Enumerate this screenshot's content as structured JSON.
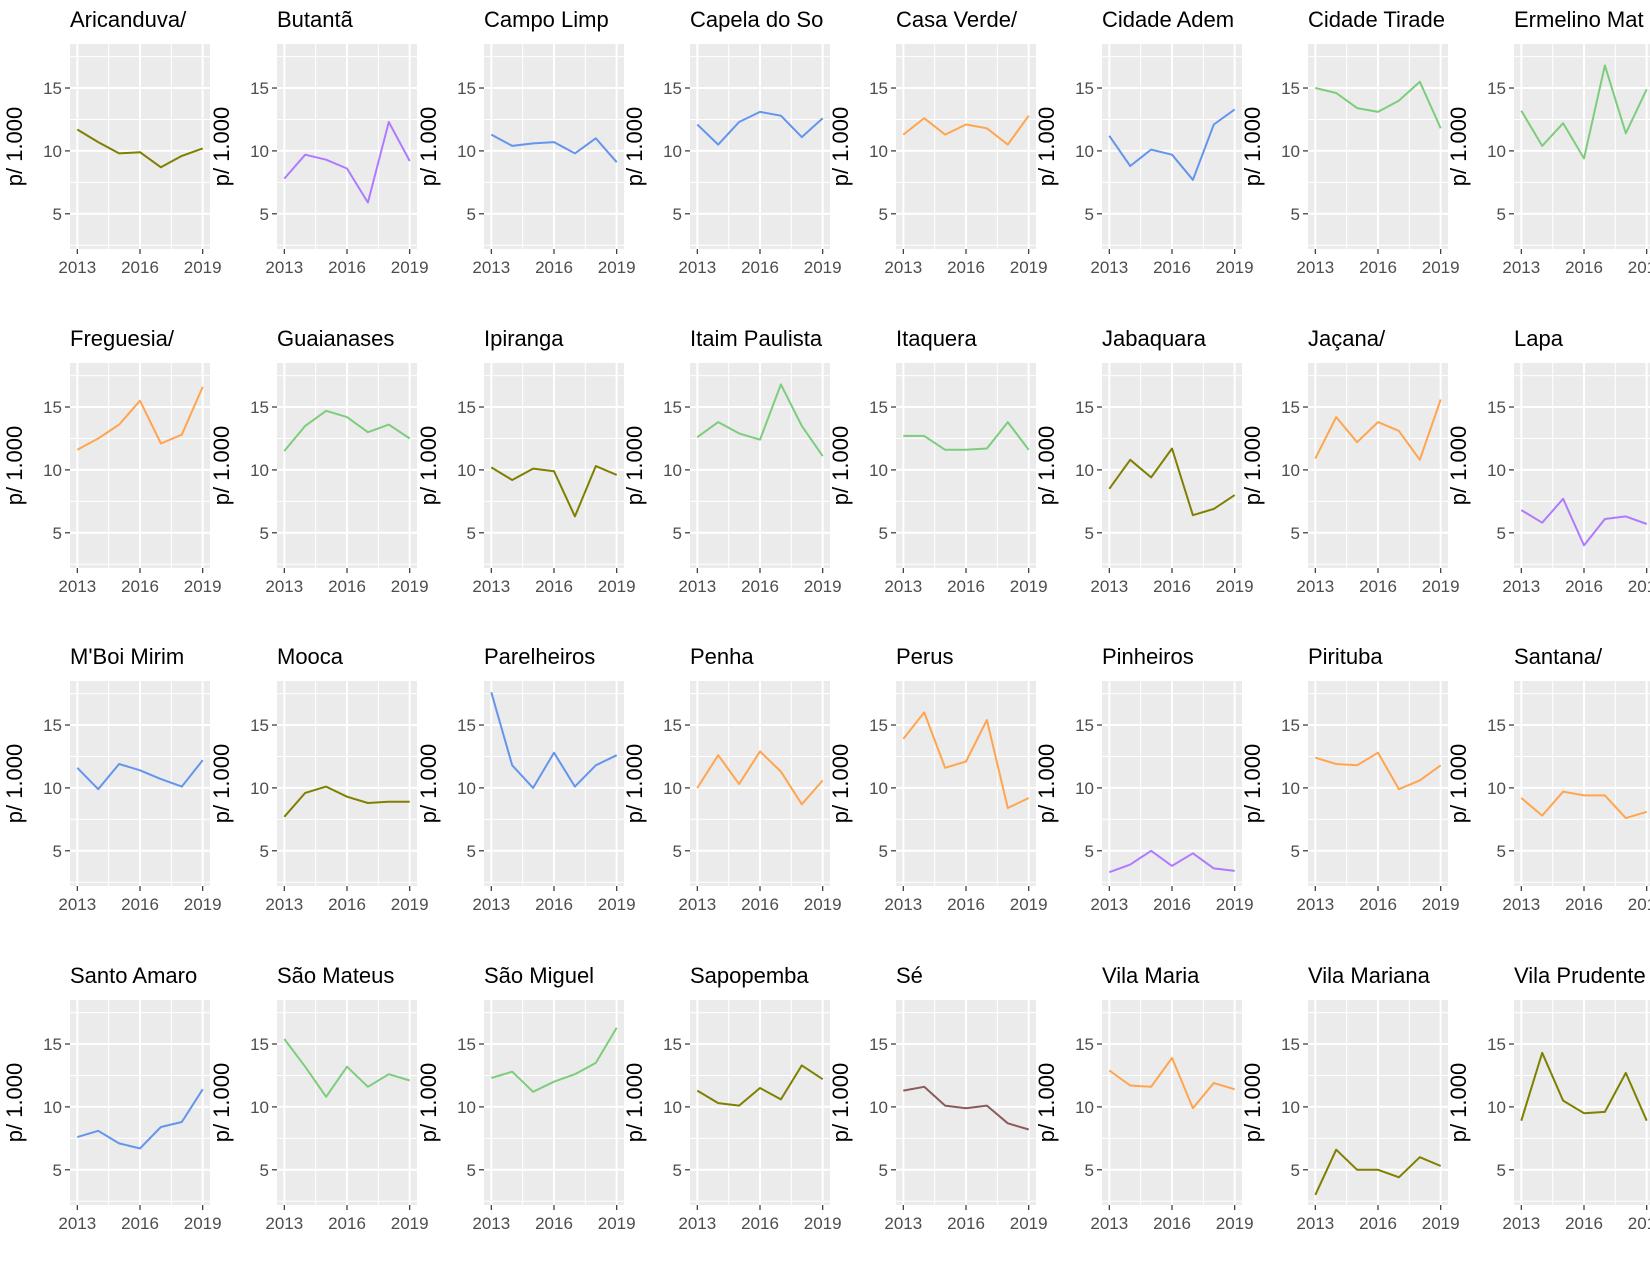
{
  "chart_data": {
    "type": "line",
    "facet_layout": "4x8 grid",
    "ylabel": "p/ 1.000",
    "ylim": [
      2.2,
      18.5
    ],
    "xlim": [
      2012.65,
      2019.35
    ],
    "x_ticks": [
      2013,
      2016,
      2019
    ],
    "y_ticks": [
      5,
      10,
      15
    ],
    "grid": true,
    "years": [
      2013,
      2014,
      2015,
      2016,
      2017,
      2018,
      2019
    ],
    "panels": [
      {
        "title": "Aricanduva/",
        "color": "#7f7f00",
        "values": [
          11.7,
          10.7,
          9.8,
          9.9,
          8.7,
          9.6,
          10.2
        ]
      },
      {
        "title": "Butantã",
        "color": "#b07aff",
        "values": [
          7.8,
          9.7,
          9.3,
          8.6,
          5.9,
          12.3,
          9.2
        ]
      },
      {
        "title": "Campo Limp",
        "color": "#6495ed",
        "values": [
          11.3,
          10.4,
          10.6,
          10.7,
          9.8,
          11.0,
          9.1
        ]
      },
      {
        "title": "Capela do So",
        "color": "#6495ed",
        "values": [
          12.1,
          10.5,
          12.3,
          13.1,
          12.8,
          11.1,
          12.6
        ]
      },
      {
        "title": "Casa Verde/",
        "color": "#ffa54f",
        "values": [
          11.3,
          12.6,
          11.3,
          12.1,
          11.8,
          10.5,
          12.8
        ]
      },
      {
        "title": "Cidade Adem",
        "color": "#6495ed",
        "values": [
          11.2,
          8.8,
          10.1,
          9.7,
          7.7,
          12.1,
          13.3
        ]
      },
      {
        "title": "Cidade Tirade",
        "color": "#7ccd7c",
        "values": [
          15.0,
          14.6,
          13.4,
          13.1,
          14.0,
          15.5,
          11.8
        ]
      },
      {
        "title": "Ermelino Mat",
        "color": "#7ccd7c",
        "values": [
          13.2,
          10.4,
          12.2,
          9.4,
          16.8,
          11.4,
          14.9
        ]
      },
      {
        "title": "Freguesia/",
        "color": "#ffa54f",
        "values": [
          11.6,
          12.5,
          13.6,
          15.5,
          12.1,
          12.8,
          16.6
        ]
      },
      {
        "title": "Guaianases",
        "color": "#7ccd7c",
        "values": [
          11.5,
          13.5,
          14.7,
          14.2,
          13.0,
          13.6,
          12.5
        ]
      },
      {
        "title": "Ipiranga",
        "color": "#7f7f00",
        "values": [
          10.2,
          9.2,
          10.1,
          9.9,
          6.3,
          10.3,
          9.6
        ]
      },
      {
        "title": "Itaim Paulista",
        "color": "#7ccd7c",
        "values": [
          12.6,
          13.8,
          12.9,
          12.4,
          16.8,
          13.5,
          11.1
        ]
      },
      {
        "title": "Itaquera",
        "color": "#7ccd7c",
        "values": [
          12.7,
          12.7,
          11.6,
          11.6,
          11.7,
          13.8,
          11.6
        ]
      },
      {
        "title": "Jabaquara",
        "color": "#7f7f00",
        "values": [
          8.5,
          10.8,
          9.4,
          11.7,
          6.4,
          6.9,
          8.0
        ]
      },
      {
        "title": "Jaçana/",
        "color": "#ffa54f",
        "values": [
          10.9,
          14.2,
          12.2,
          13.8,
          13.1,
          10.8,
          15.6
        ]
      },
      {
        "title": "Lapa",
        "color": "#b07aff",
        "values": [
          6.8,
          5.8,
          7.7,
          4.0,
          6.1,
          6.3,
          5.7
        ]
      },
      {
        "title": "M'Boi Mirim",
        "color": "#6495ed",
        "values": [
          11.6,
          9.9,
          11.9,
          11.4,
          10.7,
          10.1,
          12.2
        ]
      },
      {
        "title": "Mooca",
        "color": "#7f7f00",
        "values": [
          7.7,
          9.6,
          10.1,
          9.3,
          8.8,
          8.9,
          8.9
        ]
      },
      {
        "title": "Parelheiros",
        "color": "#6495ed",
        "values": [
          17.6,
          11.8,
          10.0,
          12.8,
          10.1,
          11.8,
          12.6
        ]
      },
      {
        "title": "Penha",
        "color": "#ffa54f",
        "values": [
          10.0,
          12.6,
          10.3,
          12.9,
          11.3,
          8.7,
          10.6
        ]
      },
      {
        "title": "Perus",
        "color": "#ffa54f",
        "values": [
          13.9,
          16.0,
          11.6,
          12.1,
          15.4,
          8.4,
          9.2
        ]
      },
      {
        "title": "Pinheiros",
        "color": "#b07aff",
        "values": [
          3.3,
          3.9,
          5.0,
          3.8,
          4.8,
          3.6,
          3.4
        ]
      },
      {
        "title": "Pirituba",
        "color": "#ffa54f",
        "values": [
          12.4,
          11.9,
          11.8,
          12.8,
          9.9,
          10.6,
          11.8
        ]
      },
      {
        "title": "Santana/",
        "color": "#ffa54f",
        "values": [
          9.2,
          7.8,
          9.7,
          9.4,
          9.4,
          7.6,
          8.1
        ]
      },
      {
        "title": "Santo Amaro",
        "color": "#6495ed",
        "values": [
          7.6,
          8.1,
          7.1,
          6.7,
          8.4,
          8.8,
          11.4
        ]
      },
      {
        "title": "São Mateus",
        "color": "#7ccd7c",
        "values": [
          15.4,
          13.2,
          10.8,
          13.2,
          11.6,
          12.6,
          12.1
        ]
      },
      {
        "title": "São Miguel",
        "color": "#7ccd7c",
        "values": [
          12.3,
          12.8,
          11.2,
          12.0,
          12.6,
          13.5,
          16.3
        ]
      },
      {
        "title": "Sapopemba",
        "color": "#7f7f00",
        "values": [
          11.3,
          10.3,
          10.1,
          11.5,
          10.6,
          13.3,
          12.2
        ]
      },
      {
        "title": "Sé",
        "color": "#8b5a5a",
        "values": [
          11.3,
          11.6,
          10.1,
          9.9,
          10.1,
          8.7,
          8.2
        ]
      },
      {
        "title": "Vila Maria",
        "color": "#ffa54f",
        "values": [
          12.9,
          11.7,
          11.6,
          13.9,
          9.9,
          11.9,
          11.4
        ]
      },
      {
        "title": "Vila Mariana",
        "color": "#7f7f00",
        "values": [
          3.0,
          6.6,
          5.0,
          5.0,
          4.4,
          6.0,
          5.3
        ]
      },
      {
        "title": "Vila Prudente",
        "color": "#7f7f00",
        "values": [
          8.9,
          14.3,
          10.5,
          9.5,
          9.6,
          12.7,
          8.9
        ]
      }
    ]
  }
}
